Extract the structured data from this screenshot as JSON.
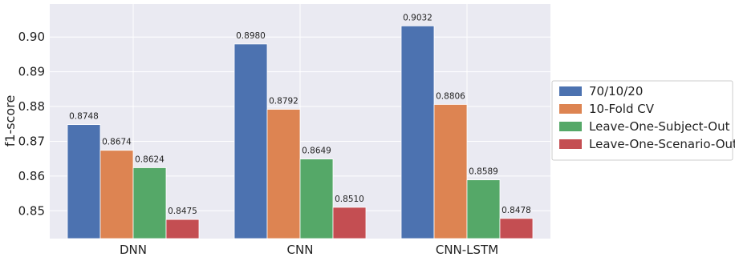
{
  "chart_data": {
    "type": "bar",
    "categories": [
      "DNN",
      "CNN",
      "CNN-LSTM"
    ],
    "series": [
      {
        "name": "70/10/20",
        "color": "#4c72b0",
        "values": [
          0.8748,
          0.898,
          0.9032
        ]
      },
      {
        "name": "10-Fold CV",
        "color": "#dd8452",
        "values": [
          0.8674,
          0.8792,
          0.8806
        ]
      },
      {
        "name": "Leave-One-Subject-Out",
        "color": "#55a868",
        "values": [
          0.8624,
          0.8649,
          0.8589
        ]
      },
      {
        "name": "Leave-One-Scenario-Out",
        "color": "#c44e52",
        "values": [
          0.8475,
          0.851,
          0.8478
        ]
      }
    ],
    "value_labels": [
      [
        "0.8748",
        "0.8674",
        "0.8624",
        "0.8475"
      ],
      [
        "0.8980",
        "0.8792",
        "0.8649",
        "0.8510"
      ],
      [
        "0.9032",
        "0.8806",
        "0.8589",
        "0.8478"
      ]
    ],
    "xlabel": "",
    "ylabel": "f1-score",
    "ylim": [
      0.842,
      0.9095
    ],
    "yticks": [
      0.85,
      0.86,
      0.87,
      0.88,
      0.89,
      0.9
    ],
    "ytick_labels": [
      "0.85",
      "0.86",
      "0.87",
      "0.88",
      "0.89",
      "0.90"
    ],
    "grid": true,
    "plot_background": "#eaeaf2",
    "legend_position": "outside-right"
  }
}
